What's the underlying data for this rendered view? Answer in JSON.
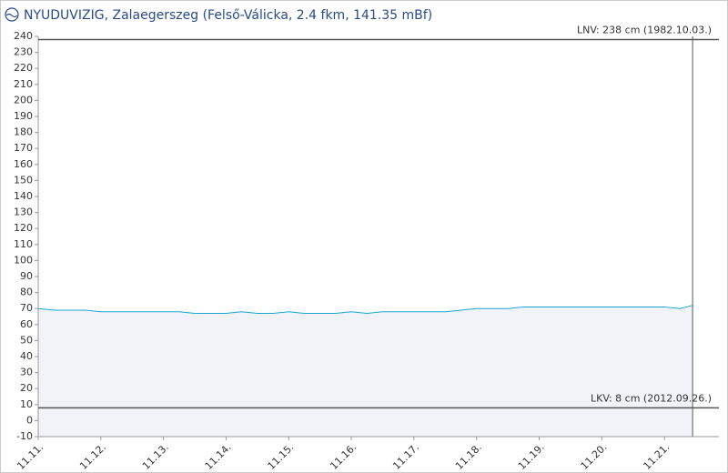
{
  "chart_data": {
    "type": "area",
    "title": "NYUDUVIZIG, Zalaegerszeg (Felső-Válicka, 2.4 fkm, 141.35 mBf)",
    "series": [
      {
        "color": "#1ba6d1",
        "x": [
          11.0,
          11.25,
          11.5,
          11.75,
          12.0,
          12.25,
          12.5,
          12.75,
          13.0,
          13.25,
          13.5,
          13.75,
          14.0,
          14.25,
          14.5,
          14.75,
          15.0,
          15.25,
          15.5,
          15.75,
          16.0,
          16.25,
          16.5,
          16.75,
          17.0,
          17.25,
          17.5,
          17.75,
          18.0,
          18.25,
          18.5,
          18.75,
          19.0,
          19.25,
          19.5,
          19.75,
          20.0,
          20.25,
          20.5,
          20.75,
          21.0,
          21.25,
          21.45
        ],
        "values": [
          70,
          69,
          69,
          69,
          68,
          68,
          68,
          68,
          68,
          68,
          67,
          67,
          67,
          68,
          67,
          67,
          68,
          67,
          67,
          67,
          68,
          67,
          68,
          68,
          68,
          68,
          68,
          69,
          70,
          70,
          70,
          71,
          71,
          71,
          71,
          71,
          71,
          71,
          71,
          71,
          71,
          70,
          72
        ]
      }
    ],
    "xlim": [
      11,
      21.87
    ],
    "xticks": [
      {
        "value": 11,
        "label": "11.11."
      },
      {
        "value": 12,
        "label": "11.12."
      },
      {
        "value": 13,
        "label": "11.13."
      },
      {
        "value": 14,
        "label": "11.14."
      },
      {
        "value": 15,
        "label": "11.15."
      },
      {
        "value": 16,
        "label": "11.16."
      },
      {
        "value": 17,
        "label": "11.17."
      },
      {
        "value": 18,
        "label": "11.18."
      },
      {
        "value": 19,
        "label": "11.19."
      },
      {
        "value": 20,
        "label": "11.20."
      },
      {
        "value": 21,
        "label": "11.21."
      }
    ],
    "ylim": [
      -10,
      240
    ],
    "yticks": [
      -10,
      0,
      10,
      20,
      30,
      40,
      50,
      60,
      70,
      80,
      90,
      100,
      110,
      120,
      130,
      140,
      150,
      160,
      170,
      180,
      190,
      200,
      210,
      220,
      230,
      240
    ],
    "reference_lines": [
      {
        "value": 238,
        "label": "LNV: 238 cm (1982.10.03.)"
      },
      {
        "value": 8,
        "label": "LKV: 8 cm (2012.09.26.)"
      }
    ],
    "grid": false
  }
}
